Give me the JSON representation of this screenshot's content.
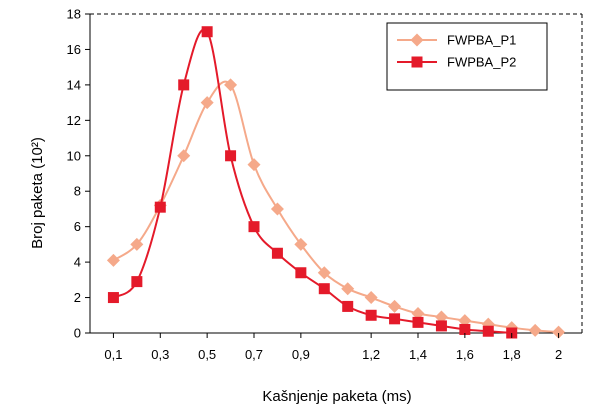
{
  "chart_data": {
    "type": "line",
    "xlabel": "Kašnjenje paketa (ms)",
    "ylabel": "Broj paketa (10²)",
    "ylim": [
      0,
      18
    ],
    "yticks": [
      0,
      2,
      4,
      6,
      8,
      10,
      12,
      14,
      16,
      18
    ],
    "ytick_labels": [
      "0",
      "2",
      "4",
      "6",
      "8",
      "10",
      "12",
      "14",
      "16",
      "18"
    ],
    "xticks": [
      0.1,
      0.3,
      0.5,
      0.7,
      0.9,
      1.2,
      1.4,
      1.6,
      1.8,
      2
    ],
    "xtick_labels": [
      "0,1",
      "0,3",
      "0,5",
      "0,7",
      "0,9",
      "1,2",
      "1,4",
      "1,6",
      "1,8",
      "2"
    ],
    "legend_position": "top-right",
    "grid": false,
    "series": [
      {
        "name": "FWPBA_P1",
        "color": "#F5A98A",
        "marker": "diamond",
        "points": [
          [
            0.1,
            4.1
          ],
          [
            0.2,
            5.0
          ],
          [
            0.3,
            7.2
          ],
          [
            0.4,
            10.0
          ],
          [
            0.5,
            13.0
          ],
          [
            0.6,
            14.0
          ],
          [
            0.7,
            9.5
          ],
          [
            0.8,
            7.0
          ],
          [
            0.9,
            5.0
          ],
          [
            1.0,
            3.4
          ],
          [
            1.1,
            2.5
          ],
          [
            1.2,
            2.0
          ],
          [
            1.3,
            1.5
          ],
          [
            1.4,
            1.1
          ],
          [
            1.5,
            0.9
          ],
          [
            1.6,
            0.7
          ],
          [
            1.7,
            0.5
          ],
          [
            1.8,
            0.3
          ],
          [
            1.9,
            0.15
          ],
          [
            2.0,
            0.05
          ]
        ]
      },
      {
        "name": "FWPBA_P2",
        "color": "#E41A2A",
        "marker": "square",
        "points": [
          [
            0.1,
            2.0
          ],
          [
            0.2,
            2.9
          ],
          [
            0.3,
            7.1
          ],
          [
            0.4,
            14.0
          ],
          [
            0.5,
            17.0
          ],
          [
            0.6,
            10.0
          ],
          [
            0.7,
            6.0
          ],
          [
            0.8,
            4.5
          ],
          [
            0.9,
            3.4
          ],
          [
            1.0,
            2.5
          ],
          [
            1.1,
            1.5
          ],
          [
            1.2,
            1.0
          ],
          [
            1.3,
            0.8
          ],
          [
            1.4,
            0.6
          ],
          [
            1.5,
            0.4
          ],
          [
            1.6,
            0.2
          ],
          [
            1.7,
            0.1
          ],
          [
            1.8,
            0.0
          ]
        ]
      }
    ]
  }
}
